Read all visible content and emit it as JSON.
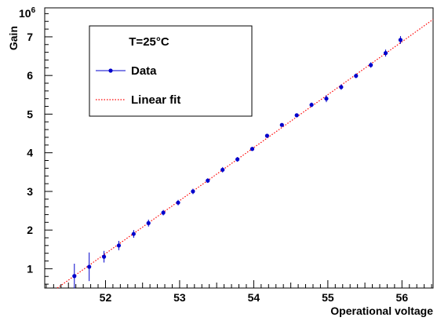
{
  "chart_data": {
    "type": "scatter",
    "xlabel": "Operational voltage",
    "ylabel": "Gain",
    "y_multiplier": "10",
    "y_multiplier_exp": "6",
    "xlim": [
      51.18,
      56.42
    ],
    "ylim": [
      0.5,
      7.75
    ],
    "x_ticks": [
      "52",
      "53",
      "54",
      "55",
      "56"
    ],
    "y_ticks": [
      "1",
      "2",
      "3",
      "4",
      "5",
      "6",
      "7"
    ],
    "legend": {
      "position": "top-left",
      "header": "T=25°C",
      "entries": [
        "Data",
        "Linear fit"
      ]
    },
    "series": [
      {
        "name": "Data",
        "color": "#0000cc",
        "points": [
          {
            "x": 51.58,
            "y": 0.81,
            "err": 0.32
          },
          {
            "x": 51.78,
            "y": 1.05,
            "err": 0.37
          },
          {
            "x": 51.98,
            "y": 1.31,
            "err": 0.15
          },
          {
            "x": 52.18,
            "y": 1.6,
            "err": 0.12
          },
          {
            "x": 52.38,
            "y": 1.9,
            "err": 0.1
          },
          {
            "x": 52.58,
            "y": 2.18,
            "err": 0.09
          },
          {
            "x": 52.78,
            "y": 2.45,
            "err": 0.07
          },
          {
            "x": 52.98,
            "y": 2.71,
            "err": 0.07
          },
          {
            "x": 53.18,
            "y": 3.0,
            "err": 0.07
          },
          {
            "x": 53.38,
            "y": 3.28,
            "err": 0.06
          },
          {
            "x": 53.58,
            "y": 3.56,
            "err": 0.07
          },
          {
            "x": 53.78,
            "y": 3.83,
            "err": 0.06
          },
          {
            "x": 53.98,
            "y": 4.1,
            "err": 0.05
          },
          {
            "x": 54.18,
            "y": 4.44,
            "err": 0.04
          },
          {
            "x": 54.38,
            "y": 4.72,
            "err": 0.04
          },
          {
            "x": 54.58,
            "y": 4.97,
            "err": 0.04
          },
          {
            "x": 54.78,
            "y": 5.24,
            "err": 0.06
          },
          {
            "x": 54.98,
            "y": 5.4,
            "err": 0.09
          },
          {
            "x": 55.18,
            "y": 5.7,
            "err": 0.07
          },
          {
            "x": 55.38,
            "y": 5.99,
            "err": 0.06
          },
          {
            "x": 55.58,
            "y": 6.27,
            "err": 0.07
          },
          {
            "x": 55.78,
            "y": 6.58,
            "err": 0.09
          },
          {
            "x": 55.98,
            "y": 6.92,
            "err": 0.1
          }
        ]
      },
      {
        "name": "Linear fit",
        "color": "#ff0000",
        "line": [
          {
            "x": 51.35,
            "y": 0.5
          },
          {
            "x": 56.42,
            "y": 7.45
          }
        ]
      }
    ],
    "grid": false
  }
}
